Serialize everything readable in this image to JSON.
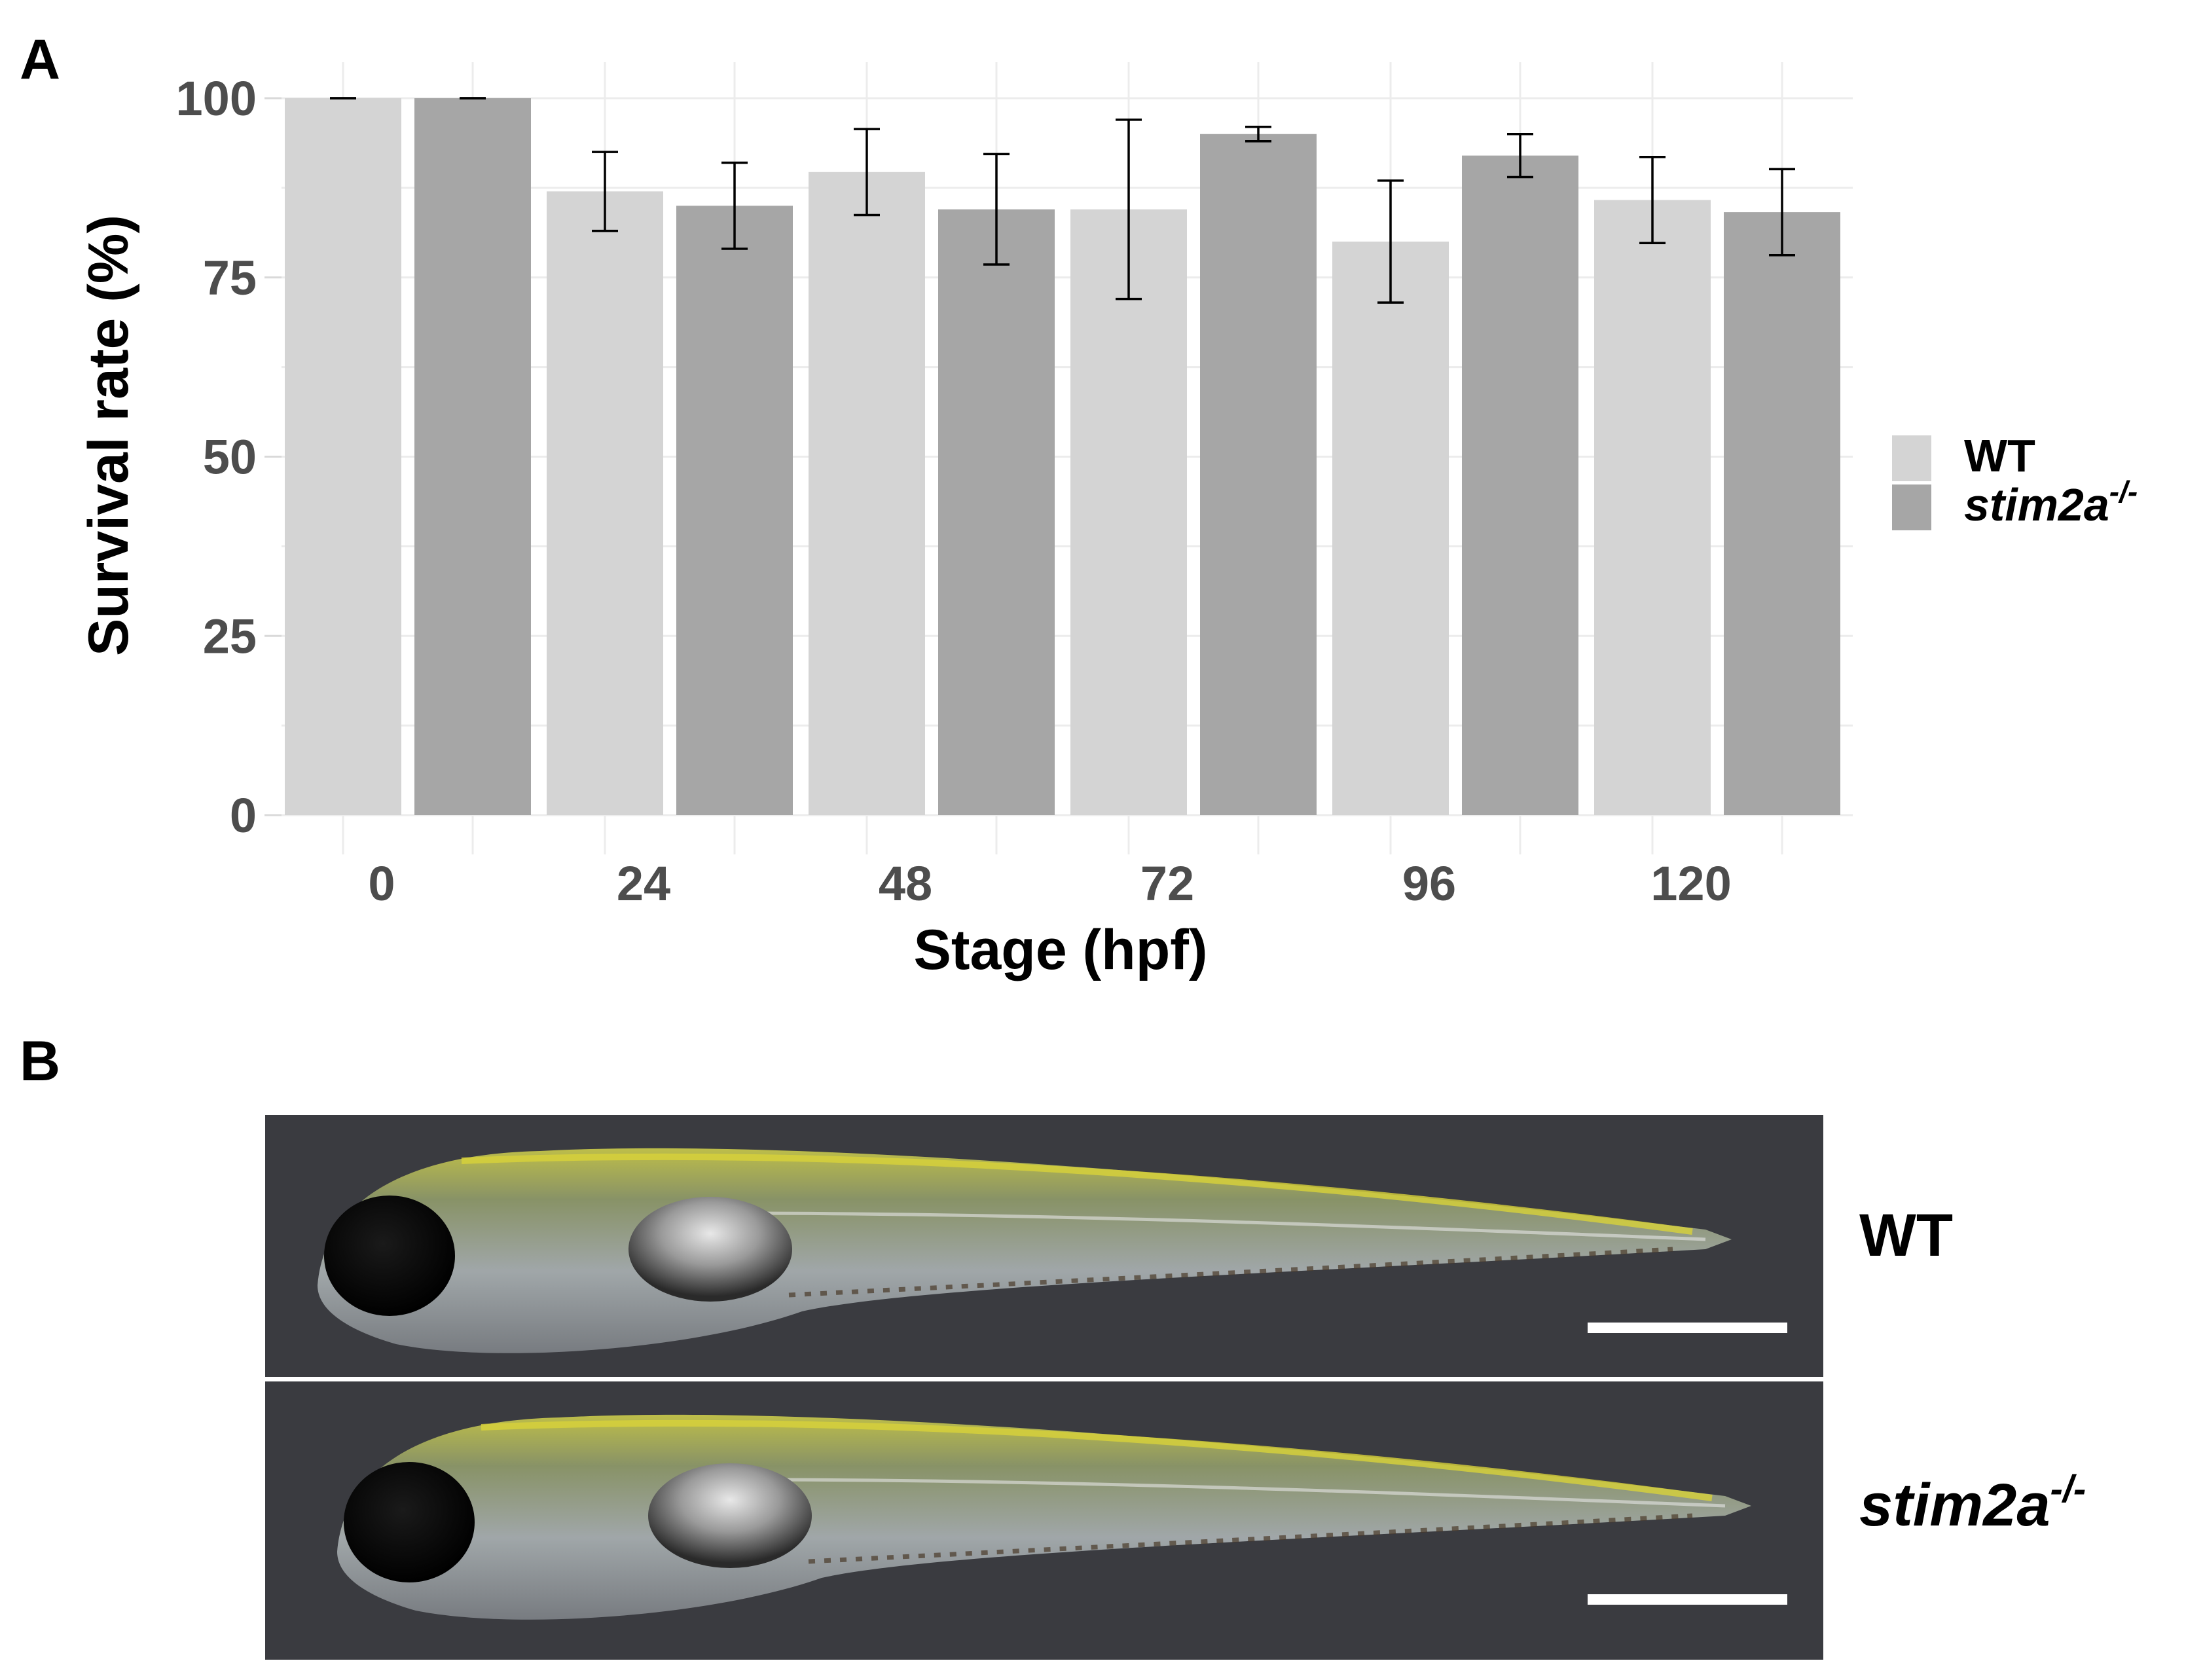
{
  "panels": {
    "a_label": "A",
    "b_label": "B"
  },
  "chart_data": {
    "type": "bar",
    "title": "",
    "xlabel": "Stage (hpf)",
    "ylabel": "Survival rate (%)",
    "categories": [
      "0",
      "24",
      "48",
      "72",
      "96",
      "120"
    ],
    "ylim": [
      0,
      100
    ],
    "yticks": [
      "0",
      "25",
      "50",
      "75",
      "100"
    ],
    "grid": true,
    "legend_position": "right",
    "series": [
      {
        "name": "WT",
        "color": "#d4d4d4",
        "values": [
          100,
          87,
          89.7,
          84.5,
          80,
          85.8
        ],
        "errors": [
          0,
          5.5,
          6,
          12.5,
          8.5,
          6
        ]
      },
      {
        "name": "stim2a",
        "name_superscript": "-/-",
        "color": "#a6a6a6",
        "values": [
          100,
          85,
          84.5,
          95,
          92,
          84.1
        ],
        "errors": [
          0,
          6,
          7.7,
          1,
          3,
          6
        ]
      }
    ]
  },
  "photos": [
    {
      "label": "WT",
      "superscript": ""
    },
    {
      "label": "stim2a",
      "superscript": "-/-"
    }
  ],
  "colors": {
    "photo_background": "#3a3b40",
    "scale_bar": "#ffffff"
  }
}
